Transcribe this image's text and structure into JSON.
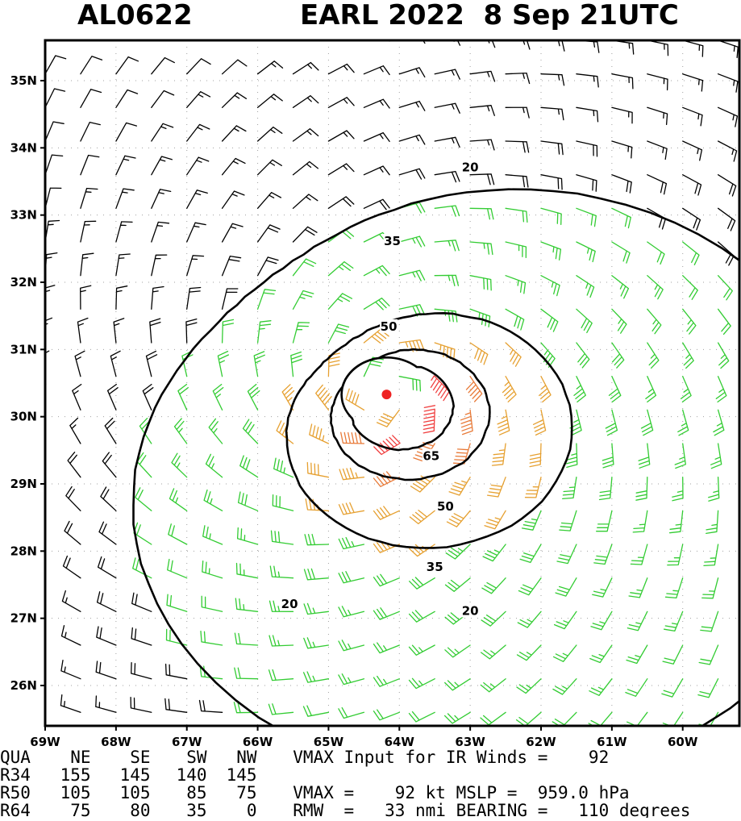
{
  "header": {
    "storm_id": "AL0622",
    "storm_title": "EARL 2022  8 Sep 21UTC"
  },
  "chart_data": {
    "type": "wind_barb_map",
    "title": "AL0622    EARL 2022  8 Sep 21UTC",
    "xlim": [
      -69.0,
      -59.2
    ],
    "ylim": [
      25.4,
      35.6
    ],
    "x_ticks": [
      {
        "value": -69,
        "label": "69W"
      },
      {
        "value": -68,
        "label": "68W"
      },
      {
        "value": -67,
        "label": "67W"
      },
      {
        "value": -66,
        "label": "66W"
      },
      {
        "value": -65,
        "label": "65W"
      },
      {
        "value": -64,
        "label": "64W"
      },
      {
        "value": -63,
        "label": "63W"
      },
      {
        "value": -62,
        "label": "62W"
      },
      {
        "value": -61,
        "label": "61W"
      },
      {
        "value": -60,
        "label": "60W"
      }
    ],
    "y_ticks": [
      {
        "value": 35,
        "label": "35N"
      },
      {
        "value": 34,
        "label": "34N"
      },
      {
        "value": 33,
        "label": "33N"
      },
      {
        "value": 32,
        "label": "32N"
      },
      {
        "value": 31,
        "label": "31N"
      },
      {
        "value": 30,
        "label": "30N"
      },
      {
        "value": 29,
        "label": "29N"
      },
      {
        "value": 28,
        "label": "28N"
      },
      {
        "value": 27,
        "label": "27N"
      },
      {
        "value": 26,
        "label": "26N"
      }
    ],
    "center": {
      "lon": -64.18,
      "lat": 30.33
    },
    "vmax_kt": 92,
    "rmw_nmi": 33,
    "contour_levels": [
      20,
      35,
      50,
      65
    ],
    "contour_labels": [
      {
        "text": "20",
        "lon": -63.0,
        "lat": 33.7
      },
      {
        "text": "35",
        "lon": -64.1,
        "lat": 32.6
      },
      {
        "text": "50",
        "lon": -64.15,
        "lat": 31.33
      },
      {
        "text": "65",
        "lon": -63.55,
        "lat": 29.4
      },
      {
        "text": "50",
        "lon": -63.35,
        "lat": 28.65
      },
      {
        "text": "35",
        "lon": -63.5,
        "lat": 27.75
      },
      {
        "text": "20",
        "lon": -65.55,
        "lat": 27.2
      },
      {
        "text": "20",
        "lon": -63.0,
        "lat": 27.1
      }
    ]
  },
  "table": {
    "rows": [
      [
        "QUA",
        "  NE",
        "  SE",
        "  SW",
        "  NW",
        "  VMAX Input for IR Winds =    92"
      ],
      [
        "R34",
        " 155",
        " 145",
        " 140",
        " 145",
        ""
      ],
      [
        "R50",
        " 105",
        " 105",
        "  85",
        "  75",
        "  VMAX =    92 kt MSLP =  959.0 hPa"
      ],
      [
        "R64",
        "  75",
        "  80",
        "  35",
        "   0",
        "  RMW  =   33 nmi BEARING =   110 degrees"
      ]
    ]
  },
  "colors": {
    "frame": "#000000",
    "grid": "#a0a0a0",
    "barb_lt20": "#000000",
    "barb_20_35": "#33cc33",
    "barb_35_50": "#e6a030",
    "barb_50_65": "#e87a38",
    "barb_ge65": "#f04040",
    "center": "#ee2222",
    "contour": "#000000"
  }
}
